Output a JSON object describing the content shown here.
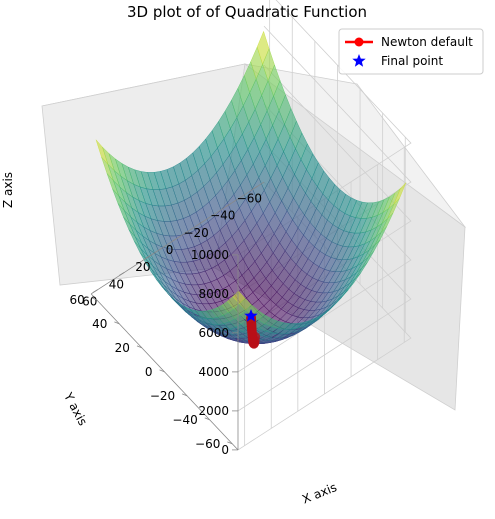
{
  "chart_data": {
    "type": "surface3d",
    "title": "3D plot of of Quadratic Function",
    "xlabel": "X axis",
    "ylabel": "Y axis",
    "zlabel": "Z axis",
    "xlim": [
      -65,
      65
    ],
    "ylim": [
      -65,
      65
    ],
    "zlim": [
      0,
      10000
    ],
    "xticks": [
      -60,
      -40,
      -20,
      0,
      20,
      40,
      60
    ],
    "yticks": [
      -60,
      -40,
      -20,
      0,
      20,
      40,
      60
    ],
    "zticks": [
      0,
      2000,
      4000,
      6000,
      8000,
      10000
    ],
    "grid": true,
    "colormap": "viridis",
    "surface_function": "z = x^2 + y^2",
    "legend_position": "top-right",
    "legend": [
      {
        "label": "Newton default",
        "color": "#ff0000",
        "marker": "circle-line"
      },
      {
        "label": "Final point",
        "color": "#0000ff",
        "marker": "star"
      }
    ],
    "series": [
      {
        "name": "Newton default",
        "color": "#ff0000",
        "points": [
          {
            "x": 35,
            "y": -45,
            "z": 3250
          },
          {
            "x": 31,
            "y": -40,
            "z": 2561
          },
          {
            "x": 27.5,
            "y": -35.5,
            "z": 2017
          },
          {
            "x": 24.5,
            "y": -31.5,
            "z": 1593
          },
          {
            "x": 21.7,
            "y": -28,
            "z": 1255
          },
          {
            "x": 19.3,
            "y": -24.8,
            "z": 988
          },
          {
            "x": 17.1,
            "y": -22,
            "z": 777
          },
          {
            "x": 15.2,
            "y": -19.5,
            "z": 611
          },
          {
            "x": 13.5,
            "y": -17.3,
            "z": 481
          },
          {
            "x": 12,
            "y": -15.4,
            "z": 381
          },
          {
            "x": 10.6,
            "y": -13.7,
            "z": 300
          },
          {
            "x": 9.4,
            "y": -12.1,
            "z": 235
          },
          {
            "x": 8.4,
            "y": -10.8,
            "z": 187
          },
          {
            "x": 7.4,
            "y": -9.6,
            "z": 147
          },
          {
            "x": 6.6,
            "y": -8.5,
            "z": 116
          },
          {
            "x": 5.9,
            "y": -7.5,
            "z": 91
          },
          {
            "x": 5.2,
            "y": -6.7,
            "z": 72
          },
          {
            "x": 4.6,
            "y": -5.9,
            "z": 56
          },
          {
            "x": 4.1,
            "y": -5.3,
            "z": 45
          },
          {
            "x": 3.6,
            "y": -4.7,
            "z": 35
          },
          {
            "x": 3.2,
            "y": -4.2,
            "z": 28
          },
          {
            "x": 2.9,
            "y": -3.7,
            "z": 22
          },
          {
            "x": 2.5,
            "y": -3.3,
            "z": 17
          },
          {
            "x": 2.3,
            "y": -2.9,
            "z": 14
          },
          {
            "x": 2,
            "y": -2.6,
            "z": 11
          },
          {
            "x": 1.8,
            "y": -2.3,
            "z": 8
          },
          {
            "x": 1.6,
            "y": -2,
            "z": 7
          },
          {
            "x": 1.4,
            "y": -1.8,
            "z": 5
          },
          {
            "x": 1.2,
            "y": -1.6,
            "z": 4
          },
          {
            "x": 1.1,
            "y": -1.4,
            "z": 3
          },
          {
            "x": 1,
            "y": -1.3,
            "z": 3
          },
          {
            "x": 0.9,
            "y": -1.1,
            "z": 2
          },
          {
            "x": 0.8,
            "y": -1,
            "z": 2
          },
          {
            "x": 0.7,
            "y": -0.9,
            "z": 1
          },
          {
            "x": 0.6,
            "y": -0.8,
            "z": 1
          }
        ]
      },
      {
        "name": "Final point",
        "color": "#0000ff",
        "points": [
          {
            "x": 0,
            "y": 0,
            "z": 0
          }
        ]
      }
    ]
  }
}
